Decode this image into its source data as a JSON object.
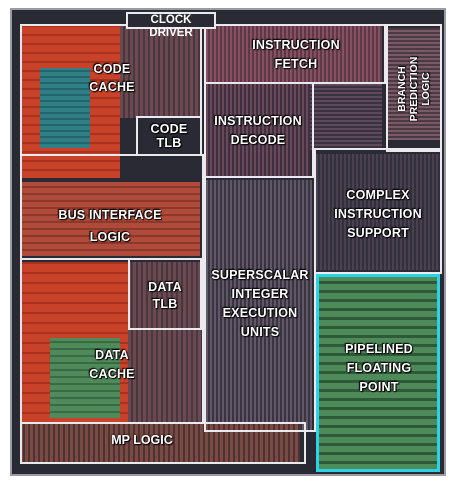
{
  "title": "CLOCK DRIVER",
  "blocks": {
    "code_cache": [
      "CODE",
      "CACHE"
    ],
    "code_tlb": [
      "CODE",
      "TLB"
    ],
    "instruction_fetch": [
      "INSTRUCTION",
      "FETCH"
    ],
    "branch_prediction": [
      "BRANCH",
      "PREDICTION",
      "LOGIC"
    ],
    "instruction_decode": [
      "INSTRUCTION",
      "DECODE"
    ],
    "bus_interface": [
      "BUS INTERFACE",
      "LOGIC"
    ],
    "complex_instruction": [
      "COMPLEX",
      "INSTRUCTION",
      "SUPPORT"
    ],
    "data_tlb": [
      "DATA",
      "TLB"
    ],
    "superscalar": [
      "SUPERSCALAR",
      "INTEGER",
      "EXECUTION",
      "UNITS"
    ],
    "data_cache": [
      "DATA",
      "CACHE"
    ],
    "pipelined_fp": [
      "PIPELINED",
      "FLOATING",
      "POINT"
    ],
    "mp_logic": "MP LOGIC"
  },
  "colors": {
    "background": "#2a2a34",
    "outline": "#e9e9ee",
    "highlight": "#2ad4e6",
    "cache_red": "#c8422a",
    "cache_teal": "#2f7f86",
    "fp_green": "#4f8a5a"
  }
}
